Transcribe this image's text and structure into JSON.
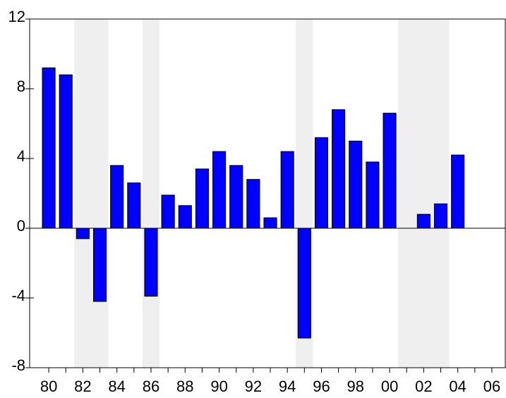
{
  "chart_data": {
    "type": "bar",
    "categories": [
      "80",
      null,
      "82",
      null,
      "84",
      null,
      "86",
      null,
      "88",
      null,
      "90",
      null,
      "92",
      null,
      "94",
      null,
      "96",
      null,
      "98",
      null,
      "00",
      null,
      "02",
      null,
      "04",
      null,
      "06"
    ],
    "values": [
      9.2,
      8.8,
      -0.6,
      -4.2,
      3.6,
      2.6,
      -3.9,
      1.9,
      1.3,
      3.4,
      4.4,
      3.6,
      2.8,
      0.6,
      4.4,
      -6.3,
      5.2,
      6.8,
      5.0,
      3.8,
      6.6,
      0.0,
      0.8,
      1.4,
      4.2,
      null,
      null
    ],
    "color": "#0000ff",
    "shade_color": "#efefef",
    "shaded_categories": [
      [
        2,
        3
      ],
      [
        6,
        6
      ],
      [
        15,
        15
      ],
      [
        21,
        23
      ]
    ],
    "ylim": [
      -8,
      12
    ],
    "yticks": [
      -8,
      -4,
      0,
      4,
      8,
      12
    ]
  }
}
